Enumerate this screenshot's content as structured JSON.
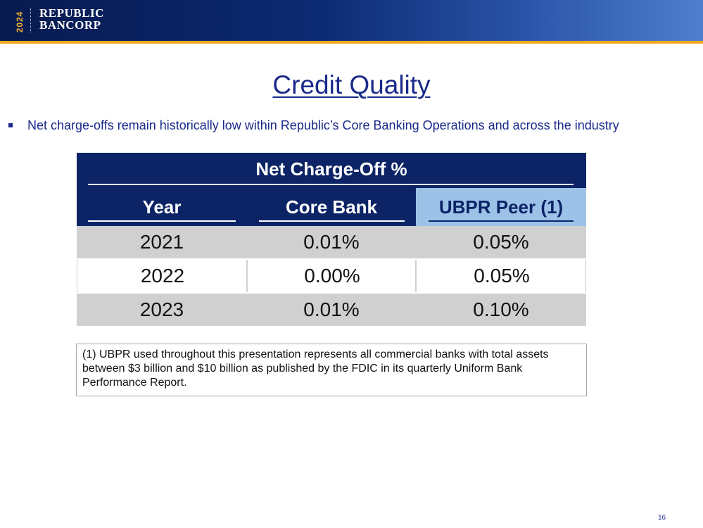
{
  "header": {
    "year": "2024",
    "brand_line1": "REPUBLIC",
    "brand_line2": "BANCORP"
  },
  "slide": {
    "title": "Credit Quality",
    "bullet": "Net charge-offs remain historically low within Republic’s Core Banking Operations and across the industry",
    "page_number": "16"
  },
  "table": {
    "title": "Net Charge-Off %",
    "columns": [
      "Year",
      "Core Bank",
      "UBPR Peer (1)"
    ],
    "rows": [
      [
        "2021",
        "0.01%",
        "0.05%"
      ],
      [
        "2022",
        "0.00%",
        "0.05%"
      ],
      [
        "2023",
        "0.01%",
        "0.10%"
      ]
    ]
  },
  "footnote": "(1) UBPR used throughout this presentation represents all commercial banks with total assets between $3 billion and $10 billion as published by the FDIC in its quarterly Uniform Bank Performance Report.",
  "colors": {
    "header_navy": "#0c2466",
    "accent_gold": "#f0a81c",
    "peer_highlight": "#9dc2e8",
    "text_blue": "#1a2a8a",
    "row_shade": "#d0d0d0"
  }
}
